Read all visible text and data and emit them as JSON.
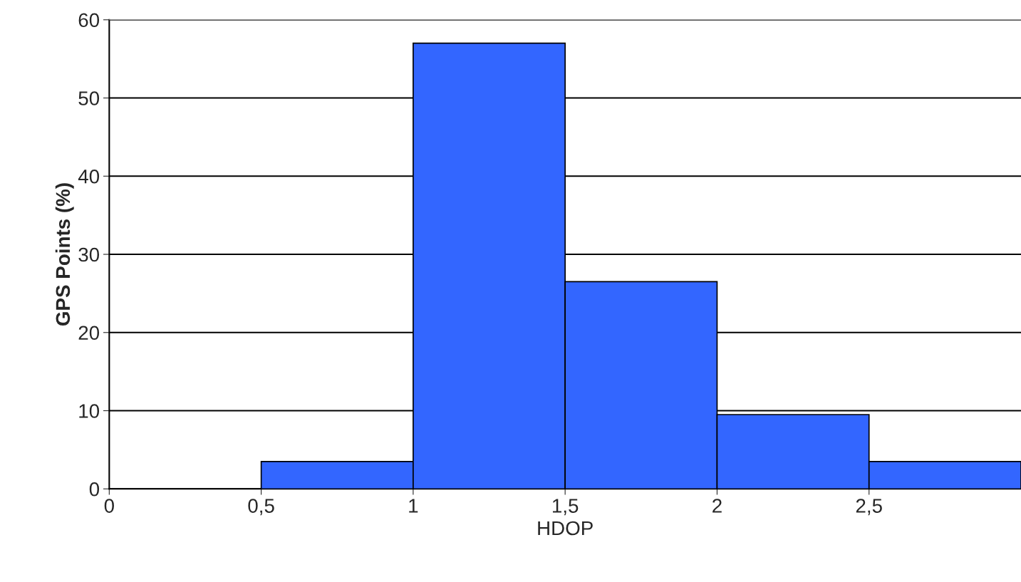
{
  "chart_data": {
    "type": "histogram",
    "xlabel": "HDOP",
    "ylabel": "GPS Points (%)",
    "bins": [
      0.5,
      1,
      1.5,
      2,
      2.5,
      3
    ],
    "values": [
      3.5,
      57,
      26.5,
      9.5,
      3.5
    ],
    "color": "#3366ff",
    "xlim": [
      0,
      3
    ],
    "ylim": [
      0,
      60
    ],
    "xticks": [
      0,
      {
        "value": 0.5,
        "label": "0,5"
      },
      1,
      {
        "value": 1.5,
        "label": "1,5"
      },
      2,
      {
        "value": 2.5,
        "label": "2,5"
      }
    ],
    "yticks": [
      0,
      10,
      20,
      30,
      40,
      50,
      60
    ],
    "grid": "y"
  }
}
